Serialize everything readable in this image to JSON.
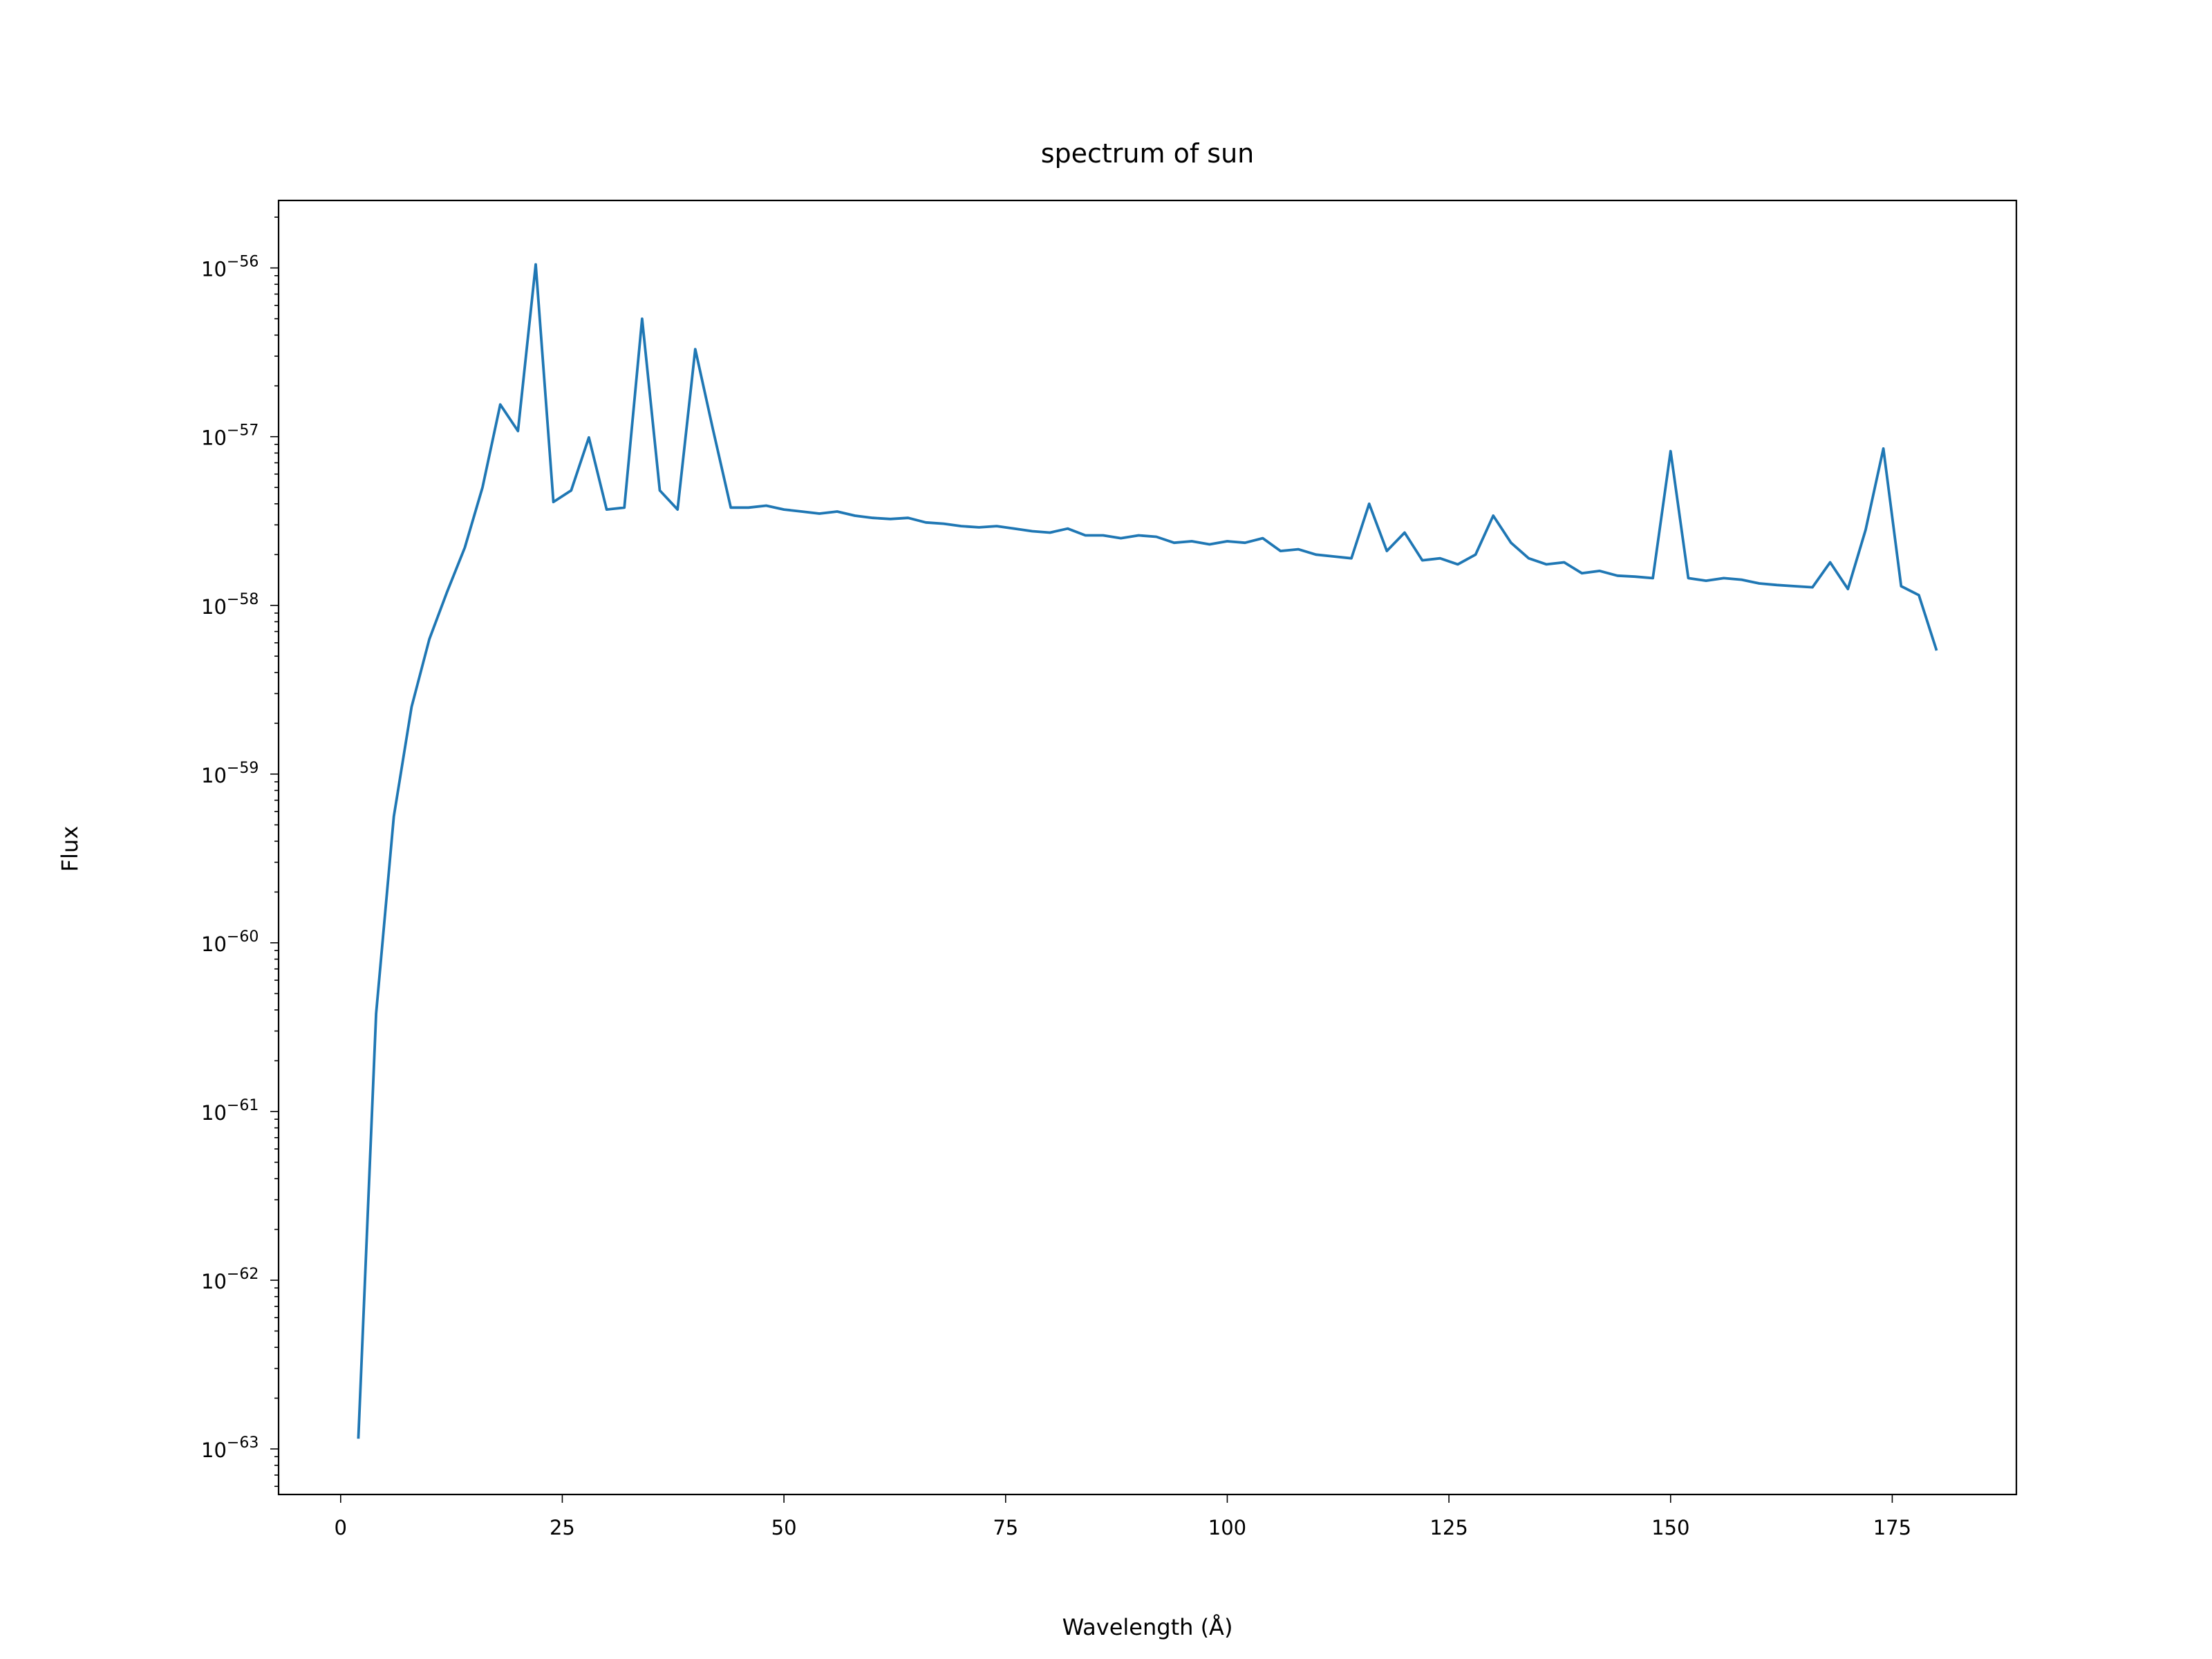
{
  "chart_data": {
    "type": "line",
    "title": "spectrum of sun",
    "xlabel": "Wavelength (Å)",
    "ylabel": "Flux",
    "xlim": [
      -7,
      189
    ],
    "ylim_log10": [
      -63.27,
      -55.6
    ],
    "yscale": "log",
    "grid": false,
    "xticks": [
      0,
      25,
      50,
      75,
      100,
      125,
      150,
      175
    ],
    "xtick_labels": [
      "0",
      "25",
      "50",
      "75",
      "100",
      "125",
      "150",
      "175"
    ],
    "yticks_log10": [
      -63,
      -62,
      -61,
      -60,
      -59,
      -58,
      -57,
      -56
    ],
    "ytick_labels": [
      {
        "base": "10",
        "exp": "−63"
      },
      {
        "base": "10",
        "exp": "−62"
      },
      {
        "base": "10",
        "exp": "−61"
      },
      {
        "base": "10",
        "exp": "−60"
      },
      {
        "base": "10",
        "exp": "−59"
      },
      {
        "base": "10",
        "exp": "−58"
      },
      {
        "base": "10",
        "exp": "−57"
      },
      {
        "base": "10",
        "exp": "−56"
      }
    ],
    "series": [
      {
        "color": "#1f77b4",
        "x": [
          2,
          4,
          6,
          8,
          10,
          12,
          14,
          16,
          18,
          20,
          22,
          24,
          26,
          28,
          30,
          32,
          34,
          36,
          38,
          40,
          42,
          44,
          46,
          48,
          50,
          52,
          54,
          56,
          58,
          60,
          62,
          64,
          66,
          68,
          70,
          72,
          74,
          76,
          78,
          80,
          82,
          84,
          86,
          88,
          90,
          92,
          94,
          96,
          98,
          100,
          102,
          104,
          106,
          108,
          110,
          112,
          114,
          116,
          118,
          120,
          122,
          124,
          126,
          128,
          130,
          132,
          134,
          136,
          138,
          140,
          142,
          144,
          146,
          148,
          150,
          152,
          154,
          156,
          158,
          160,
          162,
          164,
          166,
          168,
          170,
          172,
          174,
          176,
          178,
          180
        ],
        "y": [
          1.15e-63,
          3.8e-61,
          5.6e-60,
          2.5e-59,
          6.3e-59,
          1.2e-58,
          2.2e-58,
          5e-58,
          1.55e-57,
          1.08e-57,
          1.05e-56,
          4.1e-58,
          4.8e-58,
          9.9e-58,
          3.7e-58,
          3.8e-58,
          5e-57,
          4.8e-58,
          3.7e-58,
          3.3e-57,
          1.1e-57,
          3.8e-58,
          3.8e-58,
          3.9e-58,
          3.7e-58,
          3.6e-58,
          3.5e-58,
          3.6e-58,
          3.4e-58,
          3.3e-58,
          3.25e-58,
          3.3e-58,
          3.1e-58,
          3.05e-58,
          2.95e-58,
          2.9e-58,
          2.95e-58,
          2.85e-58,
          2.75e-58,
          2.7e-58,
          2.85e-58,
          2.6e-58,
          2.6e-58,
          2.5e-58,
          2.6e-58,
          2.55e-58,
          2.35e-58,
          2.4e-58,
          2.3e-58,
          2.4e-58,
          2.35e-58,
          2.5e-58,
          2.1e-58,
          2.15e-58,
          2e-58,
          1.95e-58,
          1.9e-58,
          4e-58,
          2.1e-58,
          2.7e-58,
          1.85e-58,
          1.9e-58,
          1.75e-58,
          2e-58,
          3.4e-58,
          2.35e-58,
          1.9e-58,
          1.75e-58,
          1.8e-58,
          1.55e-58,
          1.6e-58,
          1.5e-58,
          1.48e-58,
          1.45e-58,
          8.2e-58,
          1.45e-58,
          1.4e-58,
          1.45e-58,
          1.42e-58,
          1.35e-58,
          1.32e-58,
          1.3e-58,
          1.28e-58,
          1.8e-58,
          1.25e-58,
          2.8e-58,
          8.5e-58,
          1.3e-58,
          1.15e-58,
          5.4e-59
        ]
      }
    ]
  }
}
